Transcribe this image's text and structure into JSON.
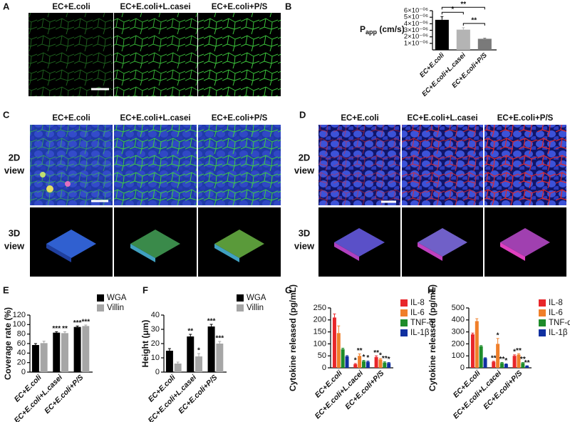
{
  "panels": {
    "A": {
      "label": "A",
      "captions": [
        "EC+E.coli",
        "EC+E.coli+L.casei",
        "EC+E.coli+P/S"
      ]
    },
    "B": {
      "label": "B"
    },
    "C": {
      "label": "C",
      "captions": [
        "EC+E.coli",
        "EC+E.coli+L.casei",
        "EC+E.coli+P/S"
      ],
      "rows": [
        [
          "2D",
          "view"
        ],
        [
          "3D",
          "view"
        ]
      ]
    },
    "D": {
      "label": "D",
      "captions": [
        "EC+E.coli",
        "EC+E.coli+L.casei",
        "EC+E.coli+P/S"
      ],
      "rows": [
        [
          "2D",
          "view"
        ],
        [
          "3D",
          "view"
        ]
      ]
    },
    "E": {
      "label": "E"
    },
    "F": {
      "label": "F"
    },
    "G": {
      "label": "G"
    },
    "H": {
      "label": "H"
    }
  },
  "chart_data": [
    {
      "type": "bar",
      "ylabel": [
        "P",
        "app",
        " (cm/s)"
      ],
      "categories": [
        "EC+E.coli",
        "EC+E.coli+L.casei",
        "EC+E.coli+P/S"
      ],
      "values": [
        4.6e-06,
        3.1e-06,
        1.7e-06
      ],
      "errors": [
        5e-07,
        3e-07,
        1e-07
      ],
      "colors": [
        "#000000",
        "#b4b4b4",
        "#7a7a7a"
      ],
      "ylim": [
        0,
        6e-06
      ],
      "yticks": [
        {
          "value": 1e-06,
          "label": "1×10⁻⁰⁶"
        },
        {
          "value": 2e-06,
          "label": "2×10⁻⁰⁶"
        },
        {
          "value": 3e-06,
          "label": "3×10⁻⁰⁶"
        },
        {
          "value": 4e-06,
          "label": "4×10⁻⁰⁶"
        },
        {
          "value": 5e-06,
          "label": "5×10⁻⁰⁶"
        },
        {
          "value": 6e-06,
          "label": "6×10⁻⁰⁶"
        }
      ],
      "comparisons": [
        {
          "text": "*",
          "from": 0,
          "to": 1
        },
        {
          "text": "**",
          "from": 0,
          "to": 2
        },
        {
          "text": "**",
          "from": 1,
          "to": 2
        }
      ]
    },
    {
      "type": "bar",
      "ylabel": "Coverage rate (%)",
      "categories": [
        "EC+E.coli",
        "EC+E.coli+L.casei",
        "EC+E.coli+P/S"
      ],
      "series": [
        {
          "name": "WGA",
          "color": "#000000",
          "values": [
            57,
            83,
            95
          ],
          "errors": [
            3,
            2,
            2
          ],
          "significance": [
            null,
            "***",
            "***"
          ]
        },
        {
          "name": "Villin",
          "color": "#a6a6a6",
          "values": [
            61,
            82,
            97
          ],
          "errors": [
            4,
            3,
            2
          ],
          "significance": [
            null,
            "**",
            "***"
          ]
        }
      ],
      "ylim": [
        0,
        120
      ],
      "yticks": [
        0,
        20,
        40,
        60,
        80,
        100,
        120
      ]
    },
    {
      "type": "bar",
      "ylabel": "Height (μm)",
      "categories": [
        "EC+E.coli",
        "EC+E.coli+L.casei",
        "EC+E.coli+P/S"
      ],
      "series": [
        {
          "name": "WGA",
          "color": "#000000",
          "values": [
            15,
            25,
            32
          ],
          "errors": [
            1.5,
            1.5,
            1.5
          ],
          "significance": [
            null,
            "**",
            "***"
          ]
        },
        {
          "name": "Villin",
          "color": "#a6a6a6",
          "values": [
            6,
            11,
            20
          ],
          "errors": [
            1,
            2,
            1.5
          ],
          "significance": [
            null,
            "*",
            "***"
          ]
        }
      ],
      "ylim": [
        0,
        40
      ],
      "yticks": [
        0,
        10,
        20,
        30,
        40
      ]
    },
    {
      "type": "bar",
      "ylabel": "Cytokine released (pg/mL)",
      "categories": [
        "EC+E.coli",
        "EC+E.coli+L.cacei",
        "EC+E.coli+P/S"
      ],
      "series": [
        {
          "name": "IL-8",
          "color": "#e8262a",
          "values": [
            210,
            15,
            45
          ],
          "errors": [
            15,
            3,
            5
          ],
          "significance": [
            null,
            "*",
            "**"
          ]
        },
        {
          "name": "IL-6",
          "color": "#f07f2a",
          "values": [
            145,
            50,
            35
          ],
          "errors": [
            30,
            8,
            4
          ],
          "significance": [
            null,
            "**",
            "*"
          ]
        },
        {
          "name": "TNF-α",
          "color": "#1e8c2a",
          "values": [
            78,
            28,
            22
          ],
          "errors": [
            4,
            3,
            3
          ],
          "significance": [
            null,
            "*",
            "**"
          ]
        },
        {
          "name": "IL-1β",
          "color": "#1030a0",
          "values": [
            48,
            25,
            20
          ],
          "errors": [
            3,
            3,
            2
          ],
          "significance": [
            null,
            "*",
            "*"
          ]
        }
      ],
      "ylim": [
        0,
        250
      ],
      "yticks": [
        0,
        50,
        100,
        150,
        200,
        250
      ]
    },
    {
      "type": "bar",
      "ylabel": "Cytokine released (pg/mL)",
      "categories": [
        "EC+E.coli",
        "EC+E.coli+L.cacei",
        "EC+E.coli+P/S"
      ],
      "series": [
        {
          "name": "IL-8",
          "color": "#e8262a",
          "values": [
            280,
            50,
            100
          ],
          "errors": [
            10,
            5,
            8
          ],
          "significance": [
            null,
            "**",
            "*"
          ]
        },
        {
          "name": "IL-6",
          "color": "#f07f2a",
          "values": [
            390,
            200,
            110
          ],
          "errors": [
            20,
            45,
            8
          ],
          "significance": [
            null,
            "*",
            "**"
          ]
        },
        {
          "name": "TNF-α",
          "color": "#1e8c2a",
          "values": [
            180,
            40,
            40
          ],
          "errors": [
            6,
            5,
            4
          ],
          "significance": [
            null,
            "**",
            "**"
          ]
        },
        {
          "name": "IL-1β",
          "color": "#1030a0",
          "values": [
            80,
            30,
            15
          ],
          "errors": [
            4,
            3,
            2
          ],
          "significance": [
            null,
            "*",
            "**"
          ]
        }
      ],
      "ylim": [
        0,
        500
      ],
      "yticks": [
        0,
        100,
        200,
        300,
        400,
        500
      ]
    }
  ]
}
